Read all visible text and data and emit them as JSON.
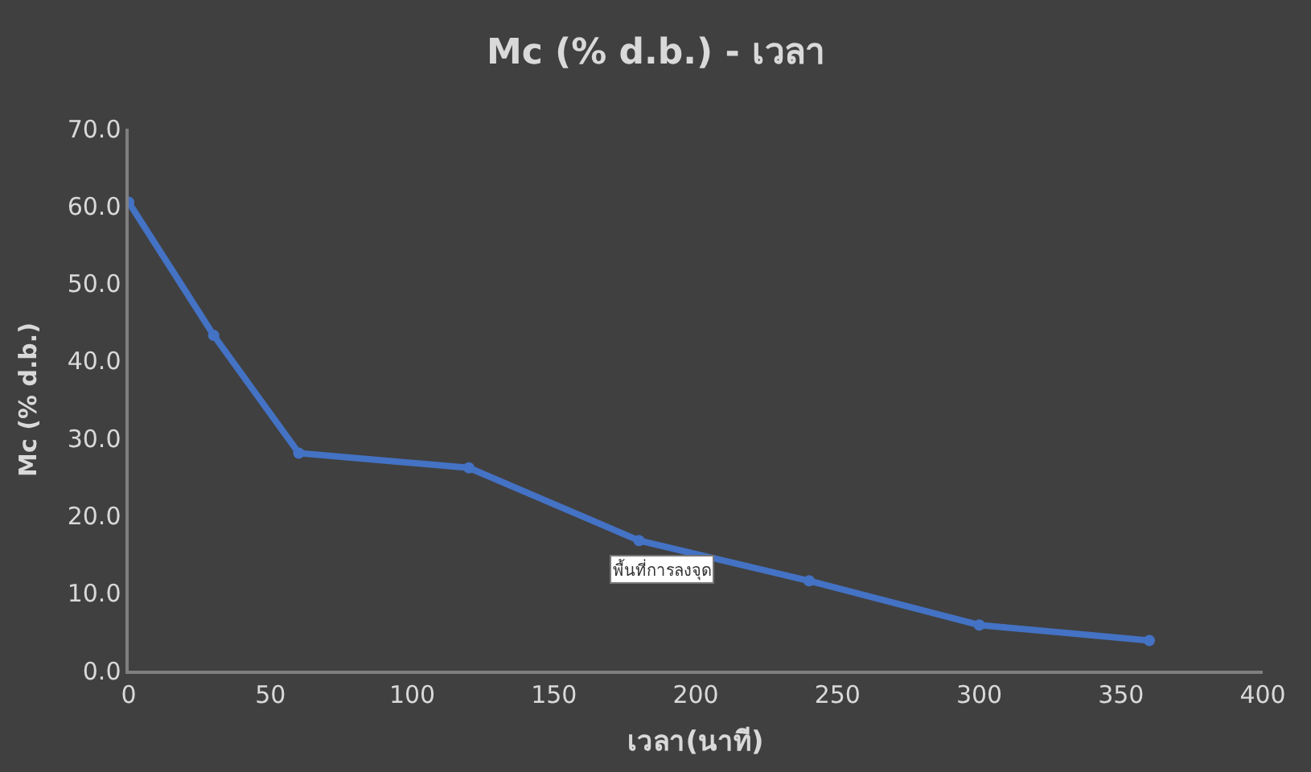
{
  "chart_data": {
    "type": "line",
    "title": "Mc (% d.b.) - เวลา",
    "xlabel": "เวลา(นาที)",
    "ylabel": "Mc (% d.b.)",
    "x": [
      0,
      30,
      60,
      120,
      180,
      240,
      300,
      360
    ],
    "series": [
      {
        "color": "#4472c4",
        "values": [
          60.5,
          43.3,
          28.1,
          26.2,
          16.8,
          11.6,
          5.9,
          3.9
        ]
      }
    ],
    "xlim": [
      0,
      400
    ],
    "xticks": [
      0,
      50,
      100,
      150,
      200,
      250,
      300,
      350,
      400
    ],
    "ylim": [
      0,
      70
    ],
    "yticks": [
      {
        "value": 0,
        "label": "0.0"
      },
      {
        "value": 10,
        "label": "10.0"
      },
      {
        "value": 20,
        "label": "20.0"
      },
      {
        "value": 30,
        "label": "30.0"
      },
      {
        "value": 40,
        "label": "40.0"
      },
      {
        "value": 50,
        "label": "50.0"
      },
      {
        "value": 60,
        "label": "60.0"
      },
      {
        "value": 70,
        "label": "70.0"
      }
    ],
    "grid": false,
    "marker": "circle",
    "line_style": "solid",
    "annotations": [
      "พื้นที่การลงจุด"
    ]
  }
}
